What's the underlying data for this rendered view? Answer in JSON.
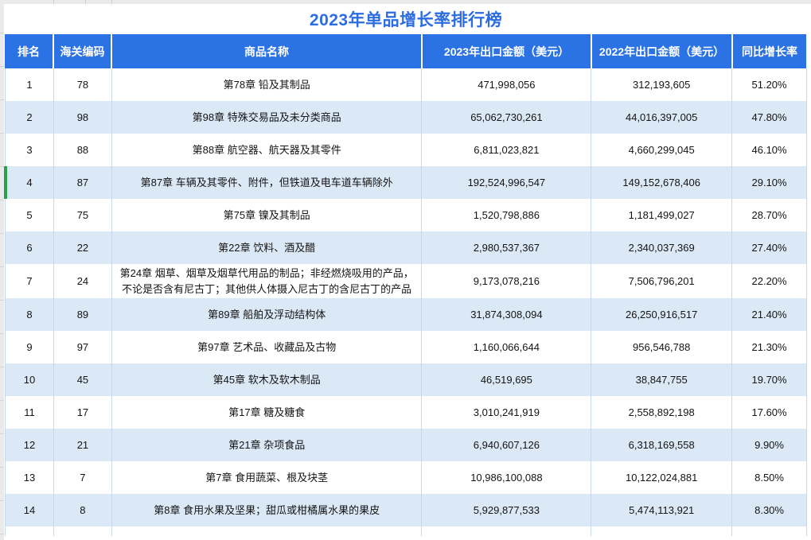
{
  "title": "2023年单品增长率排行榜",
  "highlight": {
    "rank": "4",
    "marker_color": "#29a04a"
  },
  "colors": {
    "header_bg": "#2b72e4",
    "alt_row_bg": "#dbe8f6",
    "title_color": "#2c6de2",
    "grid_line": "#c9d7ea",
    "marker_green": "#29a04a"
  },
  "table": {
    "columns": [
      {
        "id": "rank",
        "label": "排名"
      },
      {
        "id": "hs_code",
        "label": "海关编码"
      },
      {
        "id": "name",
        "label": "商品名称"
      },
      {
        "id": "export_2023",
        "label": "2023年出口金额（美元）"
      },
      {
        "id": "export_2022",
        "label": "2022年出口金额（美元）"
      },
      {
        "id": "yoy_growth",
        "label": "同比增长率"
      }
    ],
    "rows": [
      {
        "rank": "1",
        "hs_code": "78",
        "name": "第78章 铅及其制品",
        "export_2023": "471,998,056",
        "export_2022": "312,193,605",
        "yoy_growth": "51.20%"
      },
      {
        "rank": "2",
        "hs_code": "98",
        "name": "第98章 特殊交易品及未分类商品",
        "export_2023": "65,062,730,261",
        "export_2022": "44,016,397,005",
        "yoy_growth": "47.80%"
      },
      {
        "rank": "3",
        "hs_code": "88",
        "name": "第88章 航空器、航天器及其零件",
        "export_2023": "6,811,023,821",
        "export_2022": "4,660,299,045",
        "yoy_growth": "46.10%"
      },
      {
        "rank": "4",
        "hs_code": "87",
        "name": "第87章 车辆及其零件、附件，但铁道及电车道车辆除外",
        "export_2023": "192,524,996,547",
        "export_2022": "149,152,678,406",
        "yoy_growth": "29.10%"
      },
      {
        "rank": "5",
        "hs_code": "75",
        "name": "第75章 镍及其制品",
        "export_2023": "1,520,798,886",
        "export_2022": "1,181,499,027",
        "yoy_growth": "28.70%"
      },
      {
        "rank": "6",
        "hs_code": "22",
        "name": "第22章 饮料、酒及醋",
        "export_2023": "2,980,537,367",
        "export_2022": "2,340,037,369",
        "yoy_growth": "27.40%"
      },
      {
        "rank": "7",
        "hs_code": "24",
        "name": "第24章 烟草、烟草及烟草代用品的制品；非经燃烧吸用的产品，不论是否含有尼古丁；其他供人体摄入尼古丁的含尼古丁的产品",
        "export_2023": "9,173,078,216",
        "export_2022": "7,506,796,201",
        "yoy_growth": "22.20%"
      },
      {
        "rank": "8",
        "hs_code": "89",
        "name": "第89章 船舶及浮动结构体",
        "export_2023": "31,874,308,094",
        "export_2022": "26,250,916,517",
        "yoy_growth": "21.40%"
      },
      {
        "rank": "9",
        "hs_code": "97",
        "name": "第97章 艺术品、收藏品及古物",
        "export_2023": "1,160,066,644",
        "export_2022": "956,546,788",
        "yoy_growth": "21.30%"
      },
      {
        "rank": "10",
        "hs_code": "45",
        "name": "第45章 软木及软木制品",
        "export_2023": "46,519,695",
        "export_2022": "38,847,755",
        "yoy_growth": "19.70%"
      },
      {
        "rank": "11",
        "hs_code": "17",
        "name": "第17章 糖及糖食",
        "export_2023": "3,010,241,919",
        "export_2022": "2,558,892,198",
        "yoy_growth": "17.60%"
      },
      {
        "rank": "12",
        "hs_code": "21",
        "name": "第21章 杂项食品",
        "export_2023": "6,940,607,126",
        "export_2022": "6,318,169,558",
        "yoy_growth": "9.90%"
      },
      {
        "rank": "13",
        "hs_code": "7",
        "name": "第7章 食用蔬菜、根及块茎",
        "export_2023": "10,986,100,088",
        "export_2022": "10,122,024,881",
        "yoy_growth": "8.50%"
      },
      {
        "rank": "14",
        "hs_code": "8",
        "name": "第8章 食用水果及坚果；甜瓜或柑橘属水果的果皮",
        "export_2023": "5,929,877,533",
        "export_2022": "5,474,113,921",
        "yoy_growth": "8.30%"
      }
    ]
  }
}
